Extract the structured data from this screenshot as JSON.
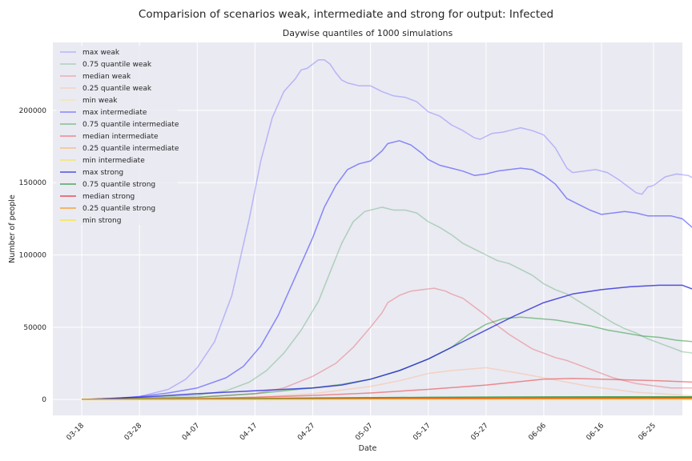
{
  "chart_data": {
    "type": "line",
    "suptitle": "Comparision of scenarios weak, intermediate and strong for output: Infected",
    "title": "Daywise quantiles of 1000 simulations",
    "xlabel": "Date",
    "ylabel": "Number of people",
    "x_ticks": [
      "03-18",
      "03-28",
      "04-07",
      "04-17",
      "04-27",
      "05-07",
      "05-17",
      "05-27",
      "06-06",
      "06-16",
      "06-25"
    ],
    "x_tick_days": [
      0,
      10,
      20,
      30,
      40,
      50,
      60,
      70,
      80,
      90,
      99
    ],
    "xlim": [
      -5,
      104
    ],
    "ylim": [
      -11000,
      247000
    ],
    "y_ticks": [
      0,
      50000,
      100000,
      150000,
      200000
    ],
    "y_tick_labels": [
      "0",
      "50000",
      "100000",
      "150000",
      "200000"
    ],
    "grid": true,
    "legend_position": "upper-left",
    "series": [
      {
        "name": "max weak",
        "color": "#6c63ff",
        "opacity": 0.4,
        "points": [
          [
            0,
            0
          ],
          [
            5,
            500
          ],
          [
            10,
            2000
          ],
          [
            15,
            7000
          ],
          [
            18,
            14000
          ],
          [
            20,
            22000
          ],
          [
            23,
            40000
          ],
          [
            26,
            72000
          ],
          [
            29,
            125000
          ],
          [
            31,
            165000
          ],
          [
            33,
            195000
          ],
          [
            35,
            213000
          ],
          [
            37,
            222000
          ],
          [
            38,
            228000
          ],
          [
            39,
            229000
          ],
          [
            40,
            232000
          ],
          [
            41,
            235000
          ],
          [
            42,
            235000
          ],
          [
            43,
            232000
          ],
          [
            44,
            226000
          ],
          [
            45,
            221000
          ],
          [
            46,
            219000
          ],
          [
            48,
            217000
          ],
          [
            50,
            217000
          ],
          [
            52,
            213000
          ],
          [
            54,
            210000
          ],
          [
            56,
            209000
          ],
          [
            58,
            206000
          ],
          [
            60,
            199000
          ],
          [
            62,
            196000
          ],
          [
            64,
            190000
          ],
          [
            66,
            186000
          ],
          [
            68,
            181000
          ],
          [
            69,
            180000
          ],
          [
            71,
            184000
          ],
          [
            73,
            185000
          ],
          [
            74,
            186000
          ],
          [
            76,
            188000
          ],
          [
            78,
            186000
          ],
          [
            80,
            183000
          ],
          [
            82,
            174000
          ],
          [
            84,
            160000
          ],
          [
            85,
            157000
          ],
          [
            87,
            158000
          ],
          [
            89,
            159000
          ],
          [
            91,
            157000
          ],
          [
            93,
            152000
          ],
          [
            95,
            146000
          ],
          [
            96,
            143000
          ],
          [
            97,
            142000
          ],
          [
            98,
            147000
          ],
          [
            99,
            148000
          ],
          [
            101,
            154000
          ],
          [
            103,
            156000
          ],
          [
            105,
            155000
          ],
          [
            106,
            153000
          ]
        ]
      },
      {
        "name": "0.75 quantile weak",
        "color": "#55a868",
        "opacity": 0.4,
        "points": [
          [
            0,
            0
          ],
          [
            10,
            1000
          ],
          [
            20,
            3000
          ],
          [
            25,
            6000
          ],
          [
            29,
            12000
          ],
          [
            32,
            20000
          ],
          [
            35,
            32000
          ],
          [
            38,
            48000
          ],
          [
            41,
            68000
          ],
          [
            43,
            88000
          ],
          [
            45,
            108000
          ],
          [
            47,
            123000
          ],
          [
            49,
            130000
          ],
          [
            51,
            132000
          ],
          [
            52,
            133000
          ],
          [
            54,
            131000
          ],
          [
            56,
            131000
          ],
          [
            58,
            129000
          ],
          [
            60,
            123000
          ],
          [
            62,
            119000
          ],
          [
            64,
            114000
          ],
          [
            66,
            108000
          ],
          [
            68,
            104000
          ],
          [
            70,
            100000
          ],
          [
            72,
            96000
          ],
          [
            74,
            94000
          ],
          [
            76,
            90000
          ],
          [
            78,
            86000
          ],
          [
            80,
            80000
          ],
          [
            82,
            76000
          ],
          [
            84,
            73000
          ],
          [
            86,
            68000
          ],
          [
            88,
            63000
          ],
          [
            90,
            58000
          ],
          [
            92,
            53000
          ],
          [
            94,
            49000
          ],
          [
            96,
            46000
          ],
          [
            98,
            42000
          ],
          [
            100,
            39000
          ],
          [
            102,
            36000
          ],
          [
            104,
            33000
          ],
          [
            106,
            32000
          ]
        ]
      },
      {
        "name": "median weak",
        "color": "#e8515a",
        "opacity": 0.4,
        "points": [
          [
            0,
            0
          ],
          [
            10,
            500
          ],
          [
            20,
            1500
          ],
          [
            30,
            4000
          ],
          [
            35,
            8000
          ],
          [
            40,
            16000
          ],
          [
            44,
            25000
          ],
          [
            47,
            36000
          ],
          [
            50,
            50000
          ],
          [
            52,
            60000
          ],
          [
            53,
            67000
          ],
          [
            55,
            72000
          ],
          [
            57,
            75000
          ],
          [
            59,
            76000
          ],
          [
            61,
            77000
          ],
          [
            63,
            75000
          ],
          [
            64,
            73000
          ],
          [
            66,
            70000
          ],
          [
            68,
            64000
          ],
          [
            70,
            58000
          ],
          [
            72,
            51000
          ],
          [
            74,
            45000
          ],
          [
            76,
            40000
          ],
          [
            78,
            35000
          ],
          [
            80,
            32000
          ],
          [
            82,
            29000
          ],
          [
            84,
            27000
          ],
          [
            86,
            24000
          ],
          [
            88,
            21000
          ],
          [
            90,
            18000
          ],
          [
            92,
            15000
          ],
          [
            94,
            13000
          ],
          [
            96,
            11000
          ],
          [
            98,
            10000
          ],
          [
            100,
            9000
          ],
          [
            102,
            8000
          ],
          [
            104,
            8000
          ],
          [
            106,
            8000
          ]
        ]
      },
      {
        "name": "0.25 quantile weak",
        "color": "#ffae80",
        "opacity": 0.4,
        "points": [
          [
            0,
            0
          ],
          [
            20,
            500
          ],
          [
            30,
            1500
          ],
          [
            40,
            4000
          ],
          [
            50,
            9000
          ],
          [
            55,
            13000
          ],
          [
            60,
            18000
          ],
          [
            64,
            20000
          ],
          [
            67,
            21000
          ],
          [
            70,
            22000
          ],
          [
            73,
            20000
          ],
          [
            76,
            18000
          ],
          [
            80,
            15000
          ],
          [
            84,
            12000
          ],
          [
            88,
            9000
          ],
          [
            92,
            7000
          ],
          [
            96,
            5000
          ],
          [
            100,
            4000
          ],
          [
            104,
            3000
          ],
          [
            106,
            2500
          ]
        ]
      },
      {
        "name": "min weak",
        "color": "#ffe24d",
        "opacity": 0.4,
        "points": [
          [
            0,
            0
          ],
          [
            106,
            500
          ]
        ]
      },
      {
        "name": "max intermediate",
        "color": "#3333ff",
        "opacity": 0.55,
        "points": [
          [
            0,
            0
          ],
          [
            5,
            500
          ],
          [
            10,
            2000
          ],
          [
            15,
            4500
          ],
          [
            20,
            8000
          ],
          [
            25,
            15000
          ],
          [
            28,
            23000
          ],
          [
            31,
            37000
          ],
          [
            34,
            58000
          ],
          [
            37,
            85000
          ],
          [
            40,
            112000
          ],
          [
            42,
            133000
          ],
          [
            44,
            148000
          ],
          [
            46,
            159000
          ],
          [
            48,
            163000
          ],
          [
            50,
            165000
          ],
          [
            52,
            172000
          ],
          [
            53,
            177000
          ],
          [
            55,
            179000
          ],
          [
            57,
            176000
          ],
          [
            59,
            170000
          ],
          [
            60,
            166000
          ],
          [
            62,
            162000
          ],
          [
            64,
            160000
          ],
          [
            66,
            158000
          ],
          [
            68,
            155000
          ],
          [
            70,
            156000
          ],
          [
            72,
            158000
          ],
          [
            74,
            159000
          ],
          [
            76,
            160000
          ],
          [
            78,
            159000
          ],
          [
            80,
            155000
          ],
          [
            82,
            149000
          ],
          [
            84,
            139000
          ],
          [
            86,
            135000
          ],
          [
            88,
            131000
          ],
          [
            90,
            128000
          ],
          [
            92,
            129000
          ],
          [
            94,
            130000
          ],
          [
            96,
            129000
          ],
          [
            98,
            127000
          ],
          [
            100,
            127000
          ],
          [
            102,
            127000
          ],
          [
            104,
            125000
          ],
          [
            106,
            118000
          ]
        ]
      },
      {
        "name": "0.75 quantile intermediate",
        "color": "#2e9a3f",
        "opacity": 0.55,
        "points": [
          [
            0,
            0
          ],
          [
            20,
            1500
          ],
          [
            30,
            4000
          ],
          [
            40,
            8000
          ],
          [
            45,
            10500
          ],
          [
            50,
            14000
          ],
          [
            55,
            20000
          ],
          [
            60,
            28000
          ],
          [
            64,
            36000
          ],
          [
            67,
            45000
          ],
          [
            70,
            52000
          ],
          [
            73,
            56000
          ],
          [
            76,
            57000
          ],
          [
            79,
            56000
          ],
          [
            82,
            55000
          ],
          [
            85,
            53000
          ],
          [
            88,
            51000
          ],
          [
            91,
            48000
          ],
          [
            94,
            46000
          ],
          [
            97,
            44000
          ],
          [
            100,
            43000
          ],
          [
            103,
            41000
          ],
          [
            106,
            40000
          ]
        ]
      },
      {
        "name": "median intermediate",
        "color": "#e83a3a",
        "opacity": 0.55,
        "points": [
          [
            0,
            0
          ],
          [
            20,
            600
          ],
          [
            30,
            1500
          ],
          [
            40,
            2800
          ],
          [
            50,
            4500
          ],
          [
            60,
            7000
          ],
          [
            70,
            10000
          ],
          [
            80,
            14000
          ],
          [
            85,
            14500
          ],
          [
            90,
            14000
          ],
          [
            95,
            13500
          ],
          [
            100,
            13000
          ],
          [
            106,
            12000
          ]
        ]
      },
      {
        "name": "0.25 quantile intermediate",
        "color": "#ff9a2e",
        "opacity": 0.55,
        "points": [
          [
            0,
            0
          ],
          [
            30,
            300
          ],
          [
            60,
            800
          ],
          [
            80,
            1200
          ],
          [
            106,
            1500
          ]
        ]
      },
      {
        "name": "min intermediate",
        "color": "#f2e600",
        "opacity": 0.55,
        "points": [
          [
            0,
            0
          ],
          [
            106,
            300
          ]
        ]
      },
      {
        "name": "max strong",
        "color": "#1f1fd6",
        "opacity": 0.75,
        "points": [
          [
            0,
            0
          ],
          [
            10,
            1500
          ],
          [
            20,
            4000
          ],
          [
            30,
            6000
          ],
          [
            40,
            8000
          ],
          [
            45,
            10000
          ],
          [
            50,
            14000
          ],
          [
            55,
            20000
          ],
          [
            60,
            28000
          ],
          [
            65,
            38000
          ],
          [
            70,
            48000
          ],
          [
            75,
            58000
          ],
          [
            80,
            67000
          ],
          [
            85,
            73000
          ],
          [
            90,
            76000
          ],
          [
            95,
            78000
          ],
          [
            100,
            79000
          ],
          [
            104,
            79000
          ],
          [
            106,
            76000
          ]
        ]
      },
      {
        "name": "0.75 quantile strong",
        "color": "#1e8c2a",
        "opacity": 0.75,
        "points": [
          [
            0,
            0
          ],
          [
            20,
            400
          ],
          [
            40,
            1000
          ],
          [
            60,
            1500
          ],
          [
            80,
            1800
          ],
          [
            106,
            1900
          ]
        ]
      },
      {
        "name": "median strong",
        "color": "#e02020",
        "opacity": 0.75,
        "points": [
          [
            0,
            0
          ],
          [
            20,
            200
          ],
          [
            40,
            500
          ],
          [
            60,
            700
          ],
          [
            80,
            900
          ],
          [
            106,
            1000
          ]
        ]
      },
      {
        "name": "0.25 quantile strong",
        "color": "#ff8a00",
        "opacity": 0.75,
        "points": [
          [
            0,
            0
          ],
          [
            30,
            100
          ],
          [
            60,
            250
          ],
          [
            106,
            300
          ]
        ]
      },
      {
        "name": "min strong",
        "color": "#ffe600",
        "opacity": 0.75,
        "points": [
          [
            0,
            0
          ],
          [
            106,
            50
          ]
        ]
      }
    ]
  }
}
